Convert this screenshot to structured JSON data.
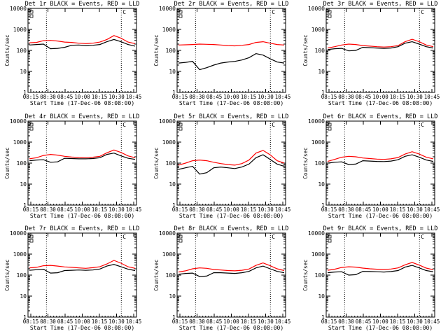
{
  "chart_data": [
    {
      "type": "line",
      "title": "Det 1r BLACK = Events, RED = LLD",
      "xlabel": "Start Time (17-Dec-06 08:08:00)",
      "ylabel": "Counts/sec",
      "yscale": "log",
      "ylim": [
        1,
        10000
      ],
      "xticks": [
        "08:15",
        "08:30",
        "08:45",
        "10:00",
        "10:15",
        "10:30",
        "10:45"
      ],
      "annotation": "C",
      "series": [
        {
          "name": "Events",
          "color": "#000000",
          "values": [
            180,
            190,
            200,
            120,
            125,
            140,
            175,
            180,
            170,
            175,
            190,
            260,
            330,
            260,
            190,
            160
          ]
        },
        {
          "name": "LLD",
          "color": "#ff0000",
          "values": [
            230,
            240,
            290,
            300,
            280,
            250,
            240,
            220,
            210,
            220,
            250,
            330,
            510,
            380,
            250,
            210
          ]
        }
      ]
    },
    {
      "type": "line",
      "title": "Det 2r BLACK = Events, RED = LLD",
      "xlabel": "Start Time (17-Dec-06 08:08:00)",
      "ylabel": "Counts/sec",
      "yscale": "log",
      "ylim": [
        1,
        10000
      ],
      "xticks": [
        "08:15",
        "08:30",
        "08:45",
        "10:00",
        "10:15",
        "10:30",
        "10:45"
      ],
      "annotation": "C",
      "series": [
        {
          "name": "Events",
          "color": "#000000",
          "values": [
            25,
            27,
            30,
            12,
            15,
            20,
            25,
            28,
            30,
            35,
            45,
            70,
            60,
            40,
            28,
            25
          ]
        },
        {
          "name": "LLD",
          "color": "#ff0000",
          "values": [
            180,
            185,
            190,
            200,
            195,
            190,
            180,
            170,
            165,
            175,
            190,
            240,
            260,
            220,
            190,
            180
          ]
        }
      ]
    },
    {
      "type": "line",
      "title": "Det 3r BLACK = Events, RED = LLD",
      "xlabel": "Start Time (17-Dec-06 08:08:00)",
      "ylabel": "Counts/sec",
      "yscale": "log",
      "ylim": [
        1,
        10000
      ],
      "xticks": [
        "08:15",
        "08:30",
        "08:45",
        "10:00",
        "10:15",
        "10:30",
        "10:45"
      ],
      "annotation": "C",
      "series": [
        {
          "name": "Events",
          "color": "#000000",
          "values": [
            110,
            120,
            125,
            95,
            100,
            140,
            135,
            130,
            125,
            130,
            150,
            220,
            260,
            200,
            150,
            130
          ]
        },
        {
          "name": "LLD",
          "color": "#ff0000",
          "values": [
            130,
            150,
            180,
            200,
            190,
            170,
            160,
            150,
            145,
            150,
            170,
            260,
            340,
            260,
            180,
            150
          ]
        }
      ]
    },
    {
      "type": "line",
      "title": "Det 4r BLACK = Events, RED = LLD",
      "xlabel": "Start Time (17-Dec-06 08:08:00)",
      "ylabel": "Counts/sec",
      "yscale": "log",
      "ylim": [
        1,
        10000
      ],
      "xticks": [
        "08:15",
        "08:30",
        "08:45",
        "10:00",
        "10:15",
        "10:30",
        "10:45"
      ],
      "annotation": "C",
      "series": [
        {
          "name": "Events",
          "color": "#000000",
          "values": [
            130,
            140,
            145,
            110,
            115,
            170,
            165,
            160,
            160,
            165,
            180,
            260,
            300,
            220,
            170,
            150
          ]
        },
        {
          "name": "LLD",
          "color": "#ff0000",
          "values": [
            160,
            180,
            230,
            260,
            240,
            210,
            195,
            185,
            180,
            190,
            210,
            310,
            420,
            320,
            220,
            180
          ]
        }
      ]
    },
    {
      "type": "line",
      "title": "Det 5r BLACK = Events, RED = LLD",
      "xlabel": "Start Time (17-Dec-06 08:08:00)",
      "ylabel": "Counts/sec",
      "yscale": "log",
      "ylim": [
        1,
        10000
      ],
      "xticks": [
        "08:15",
        "08:30",
        "08:45",
        "10:00",
        "10:15",
        "10:30",
        "10:45"
      ],
      "annotation": "C",
      "series": [
        {
          "name": "Events",
          "color": "#000000",
          "values": [
            50,
            60,
            70,
            30,
            35,
            60,
            65,
            60,
            55,
            65,
            90,
            180,
            250,
            150,
            90,
            70
          ]
        },
        {
          "name": "LLD",
          "color": "#ff0000",
          "values": [
            80,
            100,
            130,
            140,
            130,
            110,
            95,
            85,
            80,
            95,
            140,
            300,
            400,
            250,
            130,
            100
          ]
        }
      ]
    },
    {
      "type": "line",
      "title": "Det 6r BLACK = Events, RED = LLD",
      "xlabel": "Start Time (17-Dec-06 08:08:00)",
      "ylabel": "Counts/sec",
      "yscale": "log",
      "ylim": [
        1,
        10000
      ],
      "xticks": [
        "08:15",
        "08:30",
        "08:45",
        "10:00",
        "10:15",
        "10:30",
        "10:45"
      ],
      "annotation": "C",
      "series": [
        {
          "name": "Events",
          "color": "#000000",
          "values": [
            100,
            110,
            115,
            85,
            90,
            130,
            125,
            120,
            118,
            125,
            145,
            210,
            250,
            190,
            140,
            120
          ]
        },
        {
          "name": "LLD",
          "color": "#ff0000",
          "values": [
            120,
            150,
            190,
            210,
            200,
            175,
            165,
            155,
            150,
            160,
            185,
            270,
            350,
            270,
            190,
            160
          ]
        }
      ]
    },
    {
      "type": "line",
      "title": "Det 7r BLACK = Events, RED = LLD",
      "xlabel": "Start Time (17-Dec-06 08:08:00)",
      "ylabel": "Counts/sec",
      "yscale": "log",
      "ylim": [
        1,
        10000
      ],
      "xticks": [
        "08:15",
        "08:30",
        "08:45",
        "10:00",
        "10:15",
        "10:30",
        "10:45"
      ],
      "annotation": "C",
      "series": [
        {
          "name": "Events",
          "color": "#000000",
          "values": [
            170,
            180,
            190,
            125,
            130,
            165,
            170,
            175,
            170,
            175,
            195,
            270,
            320,
            250,
            190,
            165
          ]
        },
        {
          "name": "LLD",
          "color": "#ff0000",
          "values": [
            220,
            235,
            280,
            290,
            270,
            245,
            235,
            220,
            210,
            225,
            250,
            340,
            500,
            370,
            250,
            210
          ]
        }
      ]
    },
    {
      "type": "line",
      "title": "Det 8r BLACK = Events, RED = LLD",
      "xlabel": "Start Time (17-Dec-06 08:08:00)",
      "ylabel": "Counts/sec",
      "yscale": "log",
      "ylim": [
        1,
        10000
      ],
      "xticks": [
        "08:15",
        "08:30",
        "08:45",
        "10:00",
        "10:15",
        "10:30",
        "10:45"
      ],
      "annotation": "C",
      "series": [
        {
          "name": "Events",
          "color": "#000000",
          "values": [
            110,
            120,
            125,
            85,
            90,
            130,
            130,
            125,
            120,
            130,
            150,
            220,
            270,
            200,
            150,
            130
          ]
        },
        {
          "name": "LLD",
          "color": "#ff0000",
          "values": [
            140,
            160,
            200,
            220,
            210,
            185,
            175,
            165,
            160,
            170,
            195,
            290,
            380,
            280,
            200,
            165
          ]
        }
      ]
    },
    {
      "type": "line",
      "title": "Det 9r BLACK = Events, RED = LLD",
      "xlabel": "Start Time (17-Dec-06 08:08:00)",
      "ylabel": "Counts/sec",
      "yscale": "log",
      "ylim": [
        1,
        10000
      ],
      "xticks": [
        "08:15",
        "08:30",
        "08:45",
        "10:00",
        "10:15",
        "10:30",
        "10:45"
      ],
      "annotation": "C",
      "series": [
        {
          "name": "Events",
          "color": "#000000",
          "values": [
            130,
            140,
            145,
            100,
            105,
            150,
            148,
            145,
            140,
            148,
            165,
            240,
            290,
            220,
            165,
            145
          ]
        },
        {
          "name": "LLD",
          "color": "#ff0000",
          "values": [
            170,
            190,
            230,
            250,
            240,
            215,
            200,
            190,
            185,
            195,
            220,
            310,
            400,
            300,
            215,
            180
          ]
        }
      ]
    }
  ]
}
